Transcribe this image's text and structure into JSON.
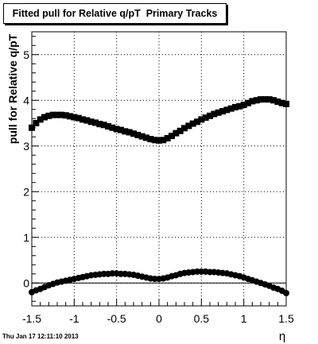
{
  "title": "Fitted pull for Relative q/pT  Primary Tracks",
  "footer": "Thu Jan 17 12:11:10 2013",
  "chart_data": {
    "type": "scatter",
    "title": "Fitted pull for Relative q/pT  Primary Tracks",
    "xlabel": "η",
    "ylabel": "pull for Relative q/pT",
    "xlim": [
      -1.5,
      1.5
    ],
    "ylim": [
      -0.5,
      5.5
    ],
    "xticks": [
      "-1.5",
      "-1",
      "-0.5",
      "0",
      "0.5",
      "1",
      "1.5"
    ],
    "yticks": [
      "0",
      "1",
      "2",
      "3",
      "4",
      "5"
    ],
    "grid": true,
    "reference_line_y": 0,
    "series": [
      {
        "marker": "square",
        "color": "#000000",
        "x": [
          -1.5,
          -1.45,
          -1.4,
          -1.35,
          -1.3,
          -1.25,
          -1.2,
          -1.15,
          -1.1,
          -1.05,
          -1.0,
          -0.95,
          -0.9,
          -0.85,
          -0.8,
          -0.75,
          -0.7,
          -0.65,
          -0.6,
          -0.55,
          -0.5,
          -0.45,
          -0.4,
          -0.35,
          -0.3,
          -0.25,
          -0.2,
          -0.15,
          -0.1,
          -0.05,
          0.0,
          0.05,
          0.1,
          0.15,
          0.2,
          0.25,
          0.3,
          0.35,
          0.4,
          0.45,
          0.5,
          0.55,
          0.6,
          0.65,
          0.7,
          0.75,
          0.8,
          0.85,
          0.9,
          0.95,
          1.0,
          1.05,
          1.1,
          1.15,
          1.2,
          1.25,
          1.3,
          1.35,
          1.4,
          1.45,
          1.5
        ],
        "y": [
          3.4,
          3.5,
          3.58,
          3.63,
          3.66,
          3.68,
          3.68,
          3.68,
          3.67,
          3.65,
          3.63,
          3.61,
          3.58,
          3.56,
          3.53,
          3.51,
          3.48,
          3.46,
          3.43,
          3.4,
          3.37,
          3.35,
          3.32,
          3.3,
          3.27,
          3.24,
          3.21,
          3.18,
          3.15,
          3.13,
          3.12,
          3.13,
          3.17,
          3.22,
          3.28,
          3.33,
          3.39,
          3.44,
          3.49,
          3.53,
          3.58,
          3.62,
          3.66,
          3.7,
          3.73,
          3.76,
          3.79,
          3.82,
          3.85,
          3.87,
          3.9,
          3.94,
          3.98,
          4.0,
          4.02,
          4.02,
          4.02,
          4.0,
          3.97,
          3.94,
          3.92
        ]
      },
      {
        "marker": "circle",
        "color": "#000000",
        "x": [
          -1.5,
          -1.45,
          -1.4,
          -1.35,
          -1.3,
          -1.25,
          -1.2,
          -1.15,
          -1.1,
          -1.05,
          -1.0,
          -0.95,
          -0.9,
          -0.85,
          -0.8,
          -0.75,
          -0.7,
          -0.65,
          -0.6,
          -0.55,
          -0.5,
          -0.45,
          -0.4,
          -0.35,
          -0.3,
          -0.25,
          -0.2,
          -0.15,
          -0.1,
          -0.05,
          0.0,
          0.05,
          0.1,
          0.15,
          0.2,
          0.25,
          0.3,
          0.35,
          0.4,
          0.45,
          0.5,
          0.55,
          0.6,
          0.65,
          0.7,
          0.75,
          0.8,
          0.85,
          0.9,
          0.95,
          1.0,
          1.05,
          1.1,
          1.15,
          1.2,
          1.25,
          1.3,
          1.35,
          1.4,
          1.45,
          1.5
        ],
        "y": [
          -0.2,
          -0.16,
          -0.13,
          -0.09,
          -0.05,
          -0.02,
          0.01,
          0.03,
          0.05,
          0.07,
          0.09,
          0.11,
          0.13,
          0.15,
          0.17,
          0.18,
          0.19,
          0.2,
          0.2,
          0.21,
          0.21,
          0.2,
          0.2,
          0.19,
          0.18,
          0.16,
          0.14,
          0.12,
          0.1,
          0.09,
          0.09,
          0.1,
          0.12,
          0.15,
          0.17,
          0.2,
          0.22,
          0.23,
          0.24,
          0.25,
          0.25,
          0.25,
          0.24,
          0.24,
          0.23,
          0.22,
          0.21,
          0.19,
          0.17,
          0.15,
          0.12,
          0.09,
          0.06,
          0.03,
          0.0,
          -0.03,
          -0.06,
          -0.1,
          -0.13,
          -0.17,
          -0.22
        ]
      }
    ]
  }
}
